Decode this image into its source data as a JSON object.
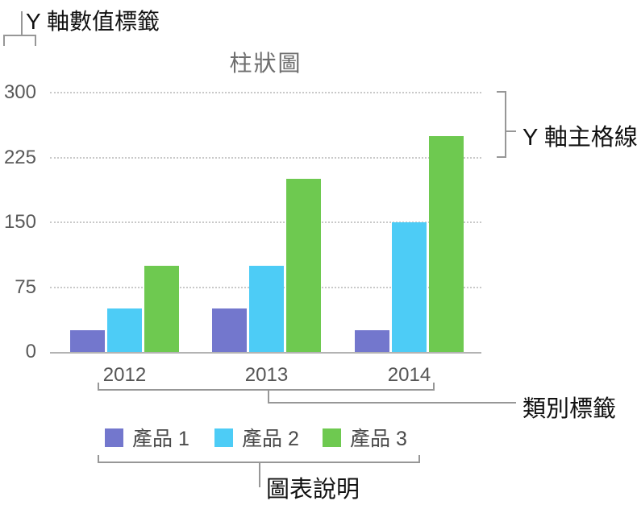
{
  "annotations": {
    "y_axis_value_labels": "Y 軸數值標籤",
    "y_axis_major_gridlines": "Y 軸主格線",
    "category_labels": "類別標籤",
    "chart_legend": "圖表說明"
  },
  "chart_data": {
    "type": "bar",
    "title": "柱狀圖",
    "categories": [
      "2012",
      "2013",
      "2014"
    ],
    "series": [
      {
        "name": "產品 1",
        "color": "#7377cd",
        "values": [
          25,
          50,
          25
        ]
      },
      {
        "name": "產品 2",
        "color": "#4dccf6",
        "values": [
          50,
          100,
          150
        ]
      },
      {
        "name": "產品 3",
        "color": "#6ec950",
        "values": [
          100,
          200,
          250
        ]
      }
    ],
    "y_ticks": [
      0,
      75,
      150,
      225,
      300
    ],
    "ylim": [
      0,
      300
    ],
    "grid": "horizontal dotted major gridlines",
    "legend_position": "bottom"
  },
  "colors": {
    "title_text": "#6e6e6e",
    "tick_label_text": "#595959",
    "annotation_text": "#111111",
    "callout_line": "#979797",
    "gridline": "#c9c9c9",
    "axis_line": "#b3b3b3"
  }
}
